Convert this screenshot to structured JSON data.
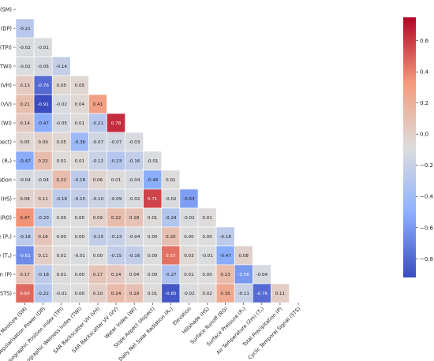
{
  "chart_data": {
    "type": "heatmap",
    "layout": "lower-triangle correlation matrix",
    "variables": [
      "Soil Moisture (SM)",
      "Depolarisation Power (DP)",
      "Topographic Position Index (TPI)",
      "Topographic Wetness Index (TWI)",
      "SAR Backscatter VH (VH)",
      "SAR Backscatter VV (VV)",
      "Water Index (WI)",
      "Slope Aspect (Aspect)",
      "Daily Net Solar Radiation (Rₙ)",
      "Elevation",
      "Hillshade (HS)",
      "Surface Runoff (RO)",
      "Surface Pressure (Pₛ)",
      "Air Temperature (2m) (Tₐ)",
      "Total Precipitation (P)",
      "Cyclic Temporal Signal (STS)"
    ],
    "values": [
      [],
      [
        -0.21
      ],
      [
        -0.02,
        -0.01
      ],
      [
        -0.02,
        -0.05,
        -0.14
      ],
      [
        0.13,
        -0.76,
        0.05,
        0.05
      ],
      [
        0.21,
        -0.91,
        -0.02,
        0.04,
        0.41
      ],
      [
        0.14,
        -0.47,
        -0.05,
        0.01,
        -0.21,
        0.78
      ],
      [
        0.05,
        0.09,
        0.05,
        -0.36,
        -0.07,
        -0.07,
        -0.03
      ],
      [
        -0.47,
        0.22,
        0.01,
        0.01,
        -0.12,
        -0.23,
        -0.16,
        -0.01
      ],
      [
        -0.04,
        -0.04,
        0.22,
        -0.18,
        0.06,
        0.01,
        -0.04,
        -0.46,
        0.01
      ],
      [
        0.08,
        0.11,
        -0.18,
        -0.15,
        -0.1,
        -0.09,
        -0.02,
        0.71,
        -0.02,
        -0.53
      ],
      [
        0.47,
        -0.2,
        0.0,
        -0.0,
        0.09,
        0.22,
        0.18,
        0.01,
        -0.24,
        -0.02,
        0.01
      ],
      [
        -0.18,
        0.16,
        -0.0,
        0.0,
        -0.15,
        -0.13,
        -0.04,
        -0.0,
        0.2,
        -0.0,
        -0.0,
        -0.18
      ],
      [
        -0.61,
        0.11,
        0.01,
        -0.01,
        0.0,
        -0.15,
        -0.16,
        -0.0,
        0.57,
        0.03,
        -0.01,
        -0.47,
        0.08
      ],
      [
        0.17,
        -0.18,
        0.01,
        0.0,
        0.17,
        0.14,
        0.04,
        -0.0,
        -0.27,
        0.01,
        -0.0,
        0.23,
        -0.56,
        -0.04
      ],
      [
        0.6,
        -0.22,
        -0.01,
        -0.0,
        0.1,
        0.24,
        0.19,
        0.01,
        -0.85,
        -0.02,
        0.02,
        0.35,
        -0.11,
        -0.76,
        0.11
      ]
    ],
    "value_format": "2 decimals",
    "color_scale": {
      "name": "coolwarm",
      "min": -0.9,
      "max": 0.9,
      "low_color": "#3b4cc0",
      "mid_color": "#dddddd",
      "high_color": "#b40426"
    },
    "colorbar_ticks": [
      0.6,
      0.4,
      0.2,
      0.0,
      -0.2,
      -0.4,
      -0.6,
      -0.8
    ],
    "title": "",
    "xlabel": "",
    "ylabel": "",
    "grid": false,
    "legend": "colorbar right"
  }
}
